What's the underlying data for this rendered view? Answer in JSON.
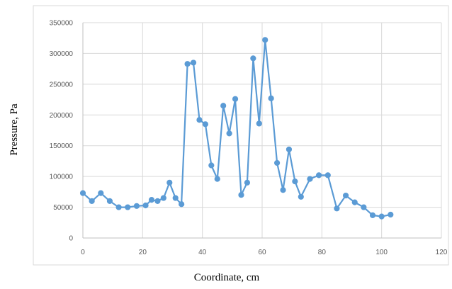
{
  "chart_data": {
    "type": "line",
    "title": "",
    "xlabel": "Coordinate, cm",
    "ylabel": "Pressure, Pa",
    "xlim": [
      0,
      120
    ],
    "ylim": [
      0,
      350000
    ],
    "x_ticks": [
      0,
      20,
      40,
      60,
      80,
      100,
      120
    ],
    "y_ticks": [
      0,
      50000,
      100000,
      150000,
      200000,
      250000,
      300000,
      350000
    ],
    "grid": true,
    "legend": "none",
    "series_color": "#5b9bd5",
    "series": [
      {
        "x": [
          0,
          3,
          6,
          9,
          12,
          15,
          18,
          21,
          23,
          25,
          27,
          29,
          31,
          33,
          35,
          37,
          39,
          41,
          43,
          45,
          47,
          49,
          51,
          53,
          55,
          57,
          59,
          61,
          63,
          65,
          67,
          69,
          71,
          73,
          76,
          79,
          82,
          85,
          88,
          91,
          94,
          97,
          100,
          103
        ],
        "values": [
          73000,
          60000,
          73000,
          60000,
          50000,
          50000,
          52000,
          53000,
          62000,
          60000,
          65000,
          90000,
          65000,
          55000,
          283000,
          285000,
          192000,
          185000,
          118000,
          96000,
          215000,
          170000,
          226000,
          70000,
          90000,
          292000,
          186000,
          322000,
          227000,
          122000,
          78000,
          144000,
          92000,
          67000,
          96000,
          102000,
          102000,
          48000,
          69000,
          58000,
          50000,
          37000,
          35000,
          38000
        ]
      }
    ]
  }
}
